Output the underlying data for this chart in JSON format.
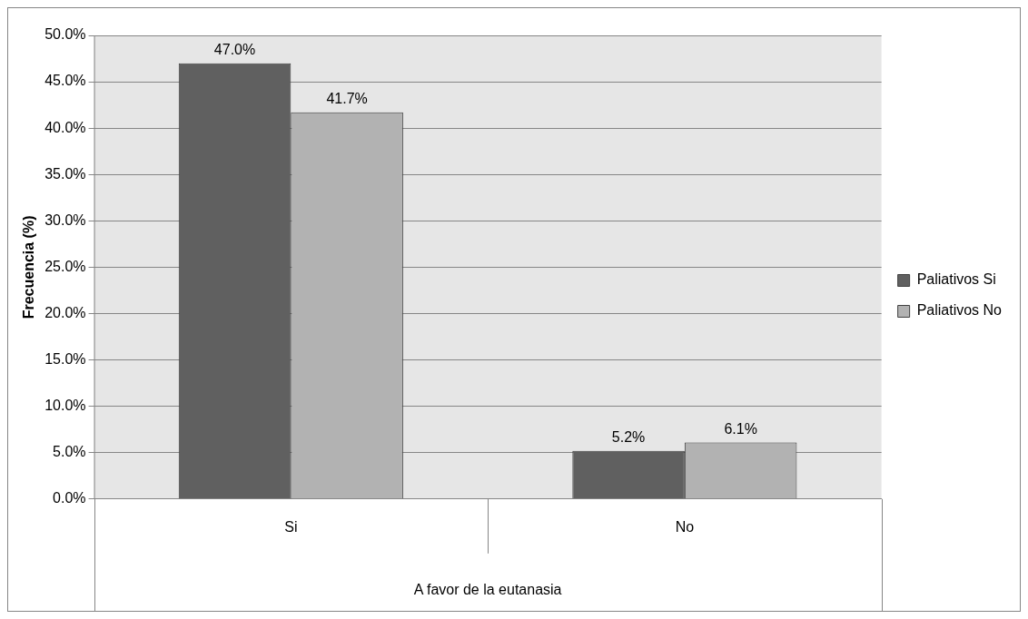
{
  "chart_data": {
    "type": "bar",
    "xlabel": "A favor de la eutanasia",
    "ylabel": "Frecuencia (%)",
    "categories": [
      "Si",
      "No"
    ],
    "series": [
      {
        "name": "Paliativos Si",
        "color": "#606060",
        "values": [
          47.0,
          5.2
        ],
        "value_labels": [
          "47.0%",
          "5.2%"
        ]
      },
      {
        "name": "Paliativos No",
        "color": "#b2b2b2",
        "values": [
          41.7,
          6.1
        ],
        "value_labels": [
          "41.7%",
          "6.1%"
        ]
      }
    ],
    "ylim": [
      0,
      50
    ],
    "yticks": [
      {
        "value": 0,
        "label": "0.0%"
      },
      {
        "value": 5,
        "label": "5.0%"
      },
      {
        "value": 10,
        "label": "10.0%"
      },
      {
        "value": 15,
        "label": "15.0%"
      },
      {
        "value": 20,
        "label": "20.0%"
      },
      {
        "value": 25,
        "label": "25.0%"
      },
      {
        "value": 30,
        "label": "30.0%"
      },
      {
        "value": 35,
        "label": "35.0%"
      },
      {
        "value": 40,
        "label": "40.0%"
      },
      {
        "value": 45,
        "label": "45.0%"
      },
      {
        "value": 50,
        "label": "50.0%"
      }
    ],
    "grid": "y",
    "legend": "right"
  }
}
